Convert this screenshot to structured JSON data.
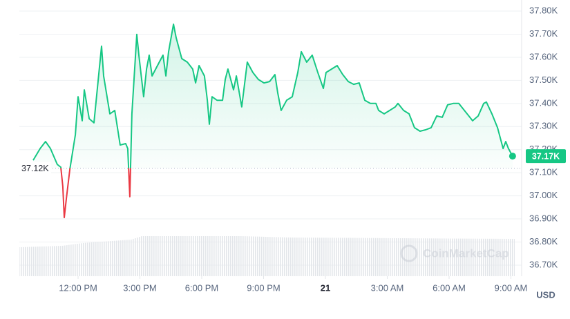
{
  "chart_data": {
    "type": "line",
    "color": "#16c784",
    "below_color": "#ea3943",
    "grid": true,
    "y_unit": "USD",
    "watermark": "CoinMarketCap",
    "baseline": {
      "value": 37.12,
      "label": "37.12K"
    },
    "price_label": "37.17K",
    "xlim": [
      9.15,
      33.52
    ],
    "ylim": [
      36.652,
      37.848
    ],
    "xticks": [
      {
        "value": 12,
        "label": "12:00 PM"
      },
      {
        "value": 15,
        "label": "3:00 PM"
      },
      {
        "value": 18,
        "label": "6:00 PM"
      },
      {
        "value": 21,
        "label": "9:00 PM"
      },
      {
        "value": 24,
        "label": "21"
      },
      {
        "value": 27,
        "label": "3:00 AM"
      },
      {
        "value": 30,
        "label": "6:00 AM"
      },
      {
        "value": 33,
        "label": "9:00 AM"
      }
    ],
    "yticks": [
      {
        "value": 36.7,
        "label": "36.70K"
      },
      {
        "value": 36.8,
        "label": "36.80K"
      },
      {
        "value": 36.9,
        "label": "36.90K"
      },
      {
        "value": 37.0,
        "label": "37.00K"
      },
      {
        "value": 37.1,
        "label": "37.10K"
      },
      {
        "value": 37.2,
        "label": "37.20K"
      },
      {
        "value": 37.3,
        "label": "37.30K"
      },
      {
        "value": 37.4,
        "label": "37.40K"
      },
      {
        "value": 37.5,
        "label": "37.50K"
      },
      {
        "value": 37.6,
        "label": "37.60K"
      },
      {
        "value": 37.7,
        "label": "37.70K"
      },
      {
        "value": 37.8,
        "label": "37.80K"
      }
    ],
    "x": [
      9.82,
      10.16,
      10.42,
      10.66,
      10.99,
      11.16,
      11.26,
      11.33,
      11.43,
      11.6,
      11.87,
      12.0,
      12.2,
      12.3,
      12.54,
      12.77,
      13.01,
      13.14,
      13.24,
      13.54,
      13.78,
      14.04,
      14.31,
      14.41,
      14.51,
      14.61,
      14.85,
      14.95,
      15.18,
      15.32,
      15.45,
      15.59,
      15.85,
      16.12,
      16.26,
      16.39,
      16.63,
      16.76,
      17.03,
      17.3,
      17.56,
      17.7,
      17.87,
      18.13,
      18.27,
      18.37,
      18.5,
      18.74,
      19.01,
      19.14,
      19.27,
      19.54,
      19.68,
      19.94,
      20.21,
      20.48,
      20.75,
      21.02,
      21.29,
      21.55,
      21.69,
      21.85,
      22.12,
      22.39,
      22.66,
      22.83,
      23.09,
      23.36,
      23.63,
      23.9,
      24.03,
      24.3,
      24.57,
      24.84,
      25.11,
      25.37,
      25.64,
      25.91,
      26.18,
      26.45,
      26.58,
      26.85,
      27.12,
      27.39,
      27.52,
      27.79,
      28.06,
      28.32,
      28.59,
      28.86,
      29.13,
      29.4,
      29.67,
      29.93,
      30.2,
      30.47,
      30.74,
      31.01,
      31.14,
      31.41,
      31.68,
      31.81,
      32.08,
      32.35,
      32.62,
      32.75,
      32.88,
      33.08
    ],
    "values": [
      37.154,
      37.205,
      37.235,
      37.205,
      37.136,
      37.124,
      37.041,
      36.906,
      36.987,
      37.115,
      37.265,
      37.429,
      37.325,
      37.459,
      37.334,
      37.316,
      37.534,
      37.648,
      37.519,
      37.355,
      37.37,
      37.22,
      37.226,
      37.205,
      36.996,
      37.355,
      37.699,
      37.609,
      37.429,
      37.549,
      37.609,
      37.519,
      37.564,
      37.609,
      37.519,
      37.624,
      37.743,
      37.684,
      37.594,
      37.579,
      37.549,
      37.489,
      37.564,
      37.519,
      37.414,
      37.31,
      37.429,
      37.414,
      37.414,
      37.504,
      37.549,
      37.459,
      37.519,
      37.385,
      37.579,
      37.534,
      37.504,
      37.489,
      37.495,
      37.525,
      37.444,
      37.37,
      37.414,
      37.429,
      37.534,
      37.624,
      37.579,
      37.609,
      37.534,
      37.465,
      37.534,
      37.549,
      37.564,
      37.525,
      37.495,
      37.483,
      37.489,
      37.414,
      37.4,
      37.4,
      37.37,
      37.355,
      37.37,
      37.385,
      37.4,
      37.37,
      37.355,
      37.295,
      37.28,
      37.286,
      37.295,
      37.346,
      37.34,
      37.394,
      37.4,
      37.4,
      37.37,
      37.34,
      37.325,
      37.346,
      37.4,
      37.406,
      37.355,
      37.295,
      37.205,
      37.235,
      37.205,
      37.172
    ]
  }
}
